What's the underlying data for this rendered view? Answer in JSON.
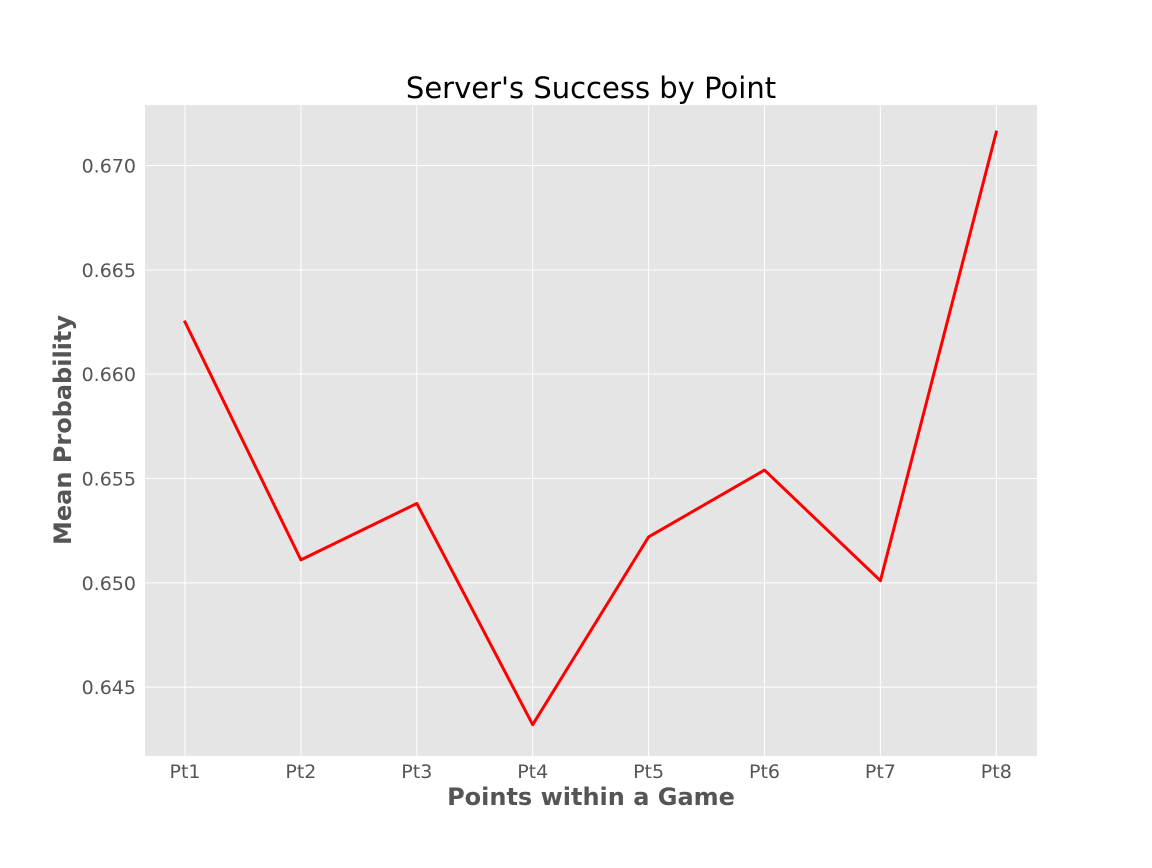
{
  "chart_data": {
    "type": "line",
    "title": "Server's Success by Point",
    "xlabel": "Points within a Game",
    "ylabel": "Mean Probability",
    "categories": [
      "Pt1",
      "Pt2",
      "Pt3",
      "Pt4",
      "Pt5",
      "Pt6",
      "Pt7",
      "Pt8"
    ],
    "series": [
      {
        "values": [
          0.6625,
          0.6511,
          0.6538,
          0.6432,
          0.6522,
          0.6554,
          0.6501,
          0.6716
        ],
        "color": "#ff0000"
      }
    ],
    "yticks": [
      "0.645",
      "0.650",
      "0.655",
      "0.660",
      "0.665",
      "0.670"
    ],
    "ytick_values": [
      0.645,
      0.65,
      0.655,
      0.66,
      0.665,
      0.67
    ],
    "ylim": [
      0.6417,
      0.6729
    ],
    "grid": true,
    "background_color": "#e5e5e5",
    "grid_color": "#ffffff"
  }
}
